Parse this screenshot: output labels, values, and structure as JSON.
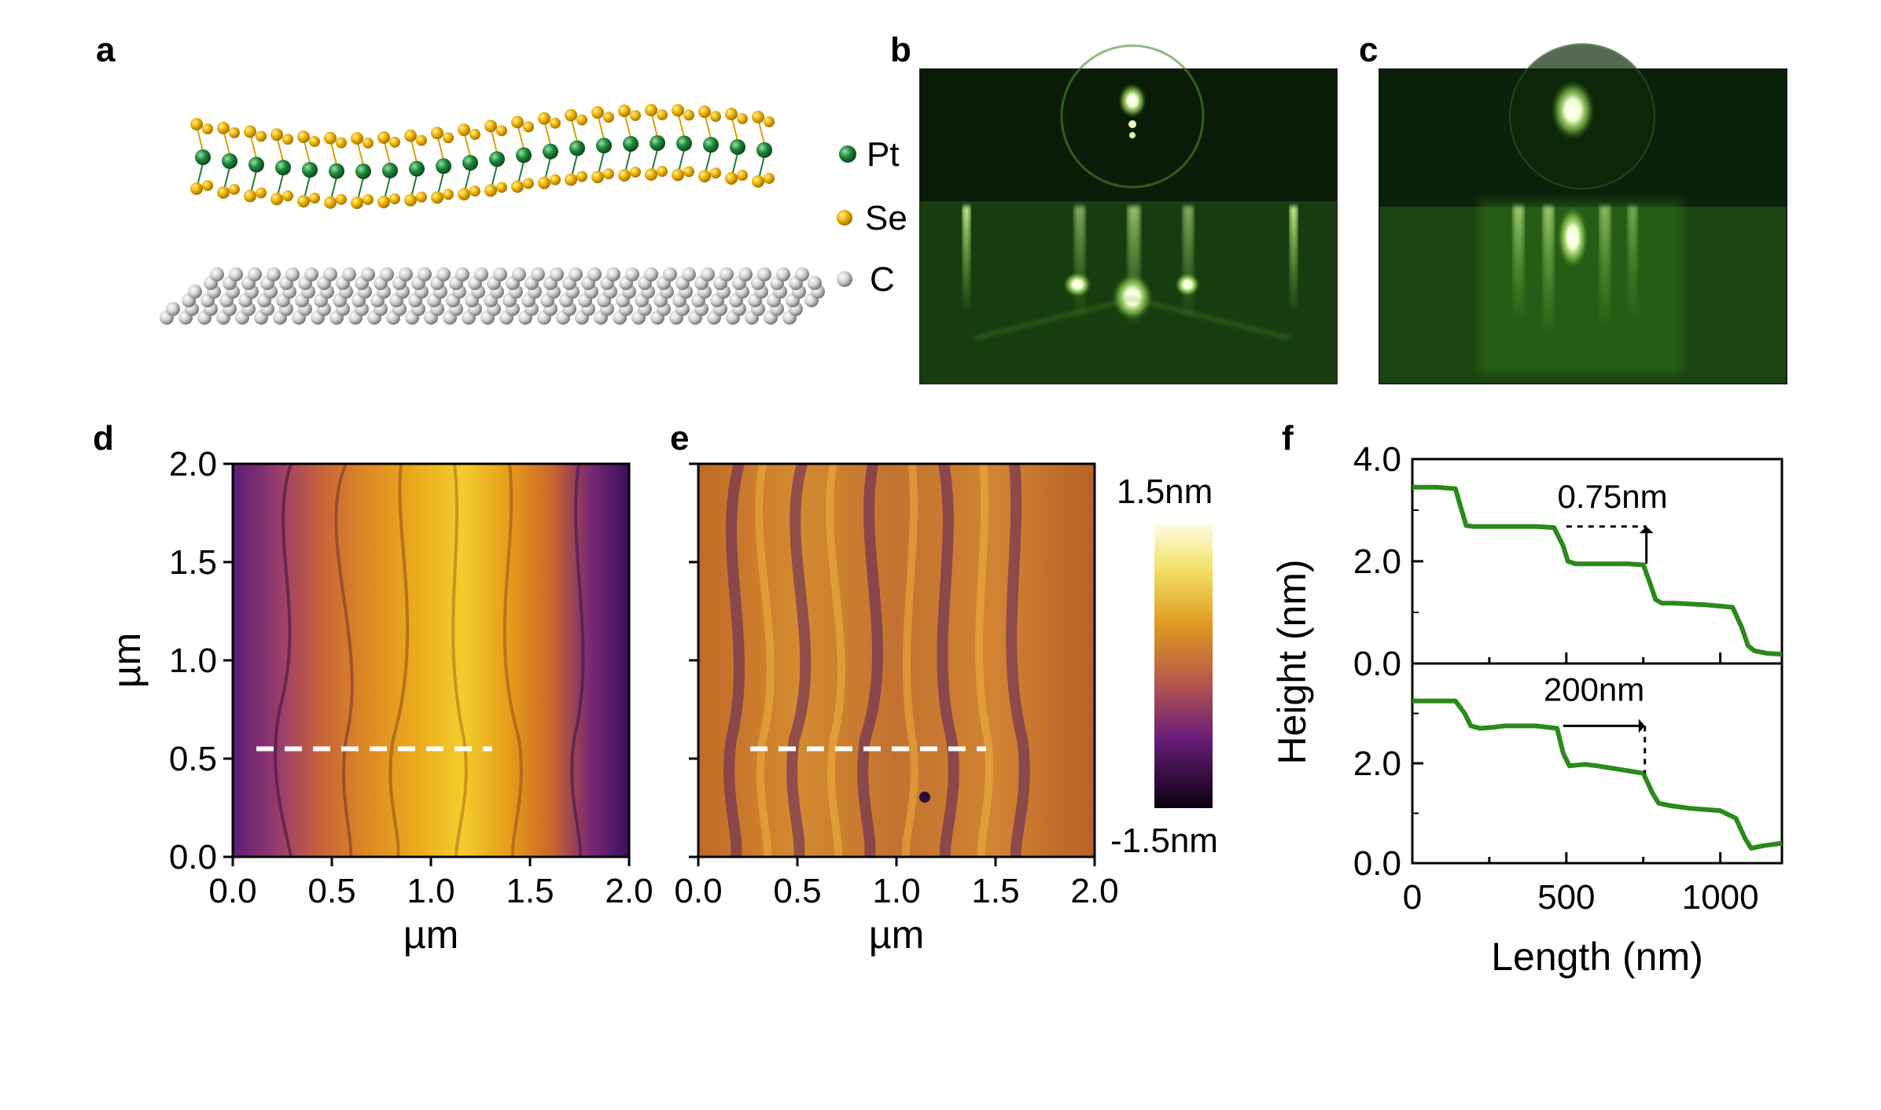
{
  "panels": {
    "a": "a",
    "b": "b",
    "c": "c",
    "d": "d",
    "e": "e",
    "f": "f"
  },
  "legend": [
    {
      "label": "Pt",
      "color": "#1e8a3c"
    },
    {
      "label": "Se",
      "color": "#f0b400"
    },
    {
      "label": "C",
      "color": "#cfcfcf"
    }
  ],
  "afm": {
    "axis_label": "µm",
    "x_ticks": [
      "0.0",
      "0.5",
      "1.0",
      "1.5",
      "2.0"
    ],
    "y_ticks": [
      "0.0",
      "0.5",
      "1.0",
      "1.5",
      "2.0"
    ],
    "colorbar_max": "1.5nm",
    "colorbar_min": "-1.5nm",
    "line_profile_y_um": 0.55
  },
  "colors": {
    "profile": "#2a8a1a",
    "rheed": "#2f6a1c"
  },
  "chart_data": {
    "type": "line",
    "xlabel": "Length (nm)",
    "ylabel": "Height (nm)",
    "xlim": [
      0,
      1200
    ],
    "ylim": [
      0,
      4.0
    ],
    "x_ticks": [
      "0",
      "500",
      "1000"
    ],
    "y_ticks": [
      "0.0",
      "2.0",
      "4.0"
    ],
    "series": [
      {
        "x": [
          0,
          80,
          140,
          160,
          175,
          200,
          300,
          400,
          460,
          490,
          505,
          530,
          600,
          700,
          750,
          770,
          790,
          810,
          850,
          950,
          1040,
          1070,
          1090,
          1110,
          1150,
          1200
        ],
        "y": [
          3.45,
          3.45,
          3.42,
          3.0,
          2.7,
          2.68,
          2.68,
          2.68,
          2.66,
          2.3,
          2.0,
          1.95,
          1.95,
          1.95,
          1.93,
          1.6,
          1.25,
          1.18,
          1.18,
          1.15,
          1.1,
          0.7,
          0.35,
          0.25,
          0.2,
          0.18
        ],
        "annotation": "0.75nm"
      },
      {
        "x": [
          0,
          100,
          140,
          170,
          190,
          220,
          260,
          300,
          400,
          470,
          490,
          510,
          560,
          600,
          700,
          750,
          780,
          800,
          840,
          900,
          1000,
          1050,
          1080,
          1100,
          1140,
          1200
        ],
        "y": [
          3.25,
          3.25,
          3.25,
          3.0,
          2.75,
          2.7,
          2.72,
          2.75,
          2.75,
          2.7,
          2.2,
          1.95,
          1.98,
          1.95,
          1.85,
          1.8,
          1.4,
          1.2,
          1.15,
          1.1,
          1.05,
          0.9,
          0.5,
          0.3,
          0.35,
          0.4
        ],
        "annotation": "200nm"
      }
    ]
  }
}
